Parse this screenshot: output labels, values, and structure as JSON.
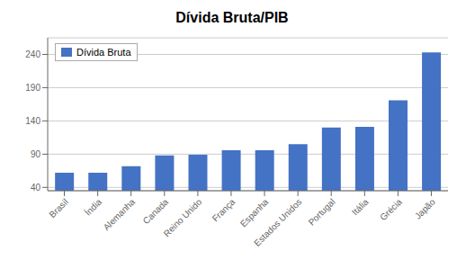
{
  "chart_data": {
    "type": "bar",
    "title": "Dívida Bruta/PIB",
    "categories": [
      "Brasil",
      "Índia",
      "Alemanha",
      "Canada",
      "Reino Unido",
      "França",
      "Espanha",
      "Estados Unidos",
      "Portugal",
      "Itália",
      "Grécia",
      "Japão"
    ],
    "series": [
      {
        "name": "Dívida Bruta",
        "color": "#4472C4",
        "values": [
          62,
          62,
          72,
          88,
          89,
          96,
          96,
          105,
          130,
          131,
          171,
          243
        ]
      }
    ],
    "ylim": [
      35,
      265
    ],
    "yticks": [
      40,
      90,
      140,
      190,
      240
    ],
    "grid": true,
    "legend": "upper left"
  }
}
